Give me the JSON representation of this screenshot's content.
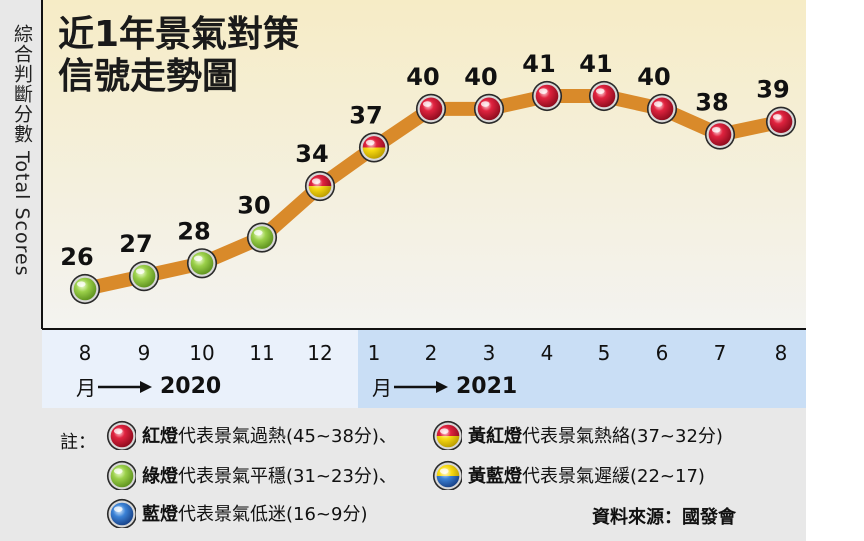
{
  "chart_data": {
    "type": "line",
    "title_line1": "近1年景氣對策",
    "title_line2": "信號走勢圖",
    "ylabel": "綜合判斷分數 Total Scores",
    "x_tick_labels": [
      "8",
      "9",
      "10",
      "11",
      "12",
      "1",
      "2",
      "3",
      "4",
      "5",
      "6",
      "7",
      "8"
    ],
    "series": [
      {
        "values": [
          26,
          27,
          28,
          30,
          34,
          37,
          40,
          40,
          41,
          41,
          40,
          38,
          39
        ],
        "signals": [
          "green",
          "green",
          "green",
          "green",
          "yellow-red",
          "yellow-red",
          "red",
          "red",
          "red",
          "red",
          "red",
          "red",
          "red"
        ]
      }
    ],
    "year_2020_prefix": "月",
    "year_2020": "2020",
    "year_2021_prefix": "月",
    "year_2021": "2021",
    "ylim": [
      23,
      44
    ],
    "grid": false,
    "line_color": "#d98a2a"
  },
  "legend": {
    "note_label": "註：",
    "items": [
      {
        "signal": "red",
        "name": "紅燈",
        "desc": "代表景氣過熱(45~38分)、"
      },
      {
        "signal": "yellow-red",
        "name": "黃紅燈",
        "desc": "代表景氣熱絡(37~32分)"
      },
      {
        "signal": "green",
        "name": "綠燈",
        "desc": "代表景氣平穩(31~23分)、"
      },
      {
        "signal": "yellow-blue",
        "name": "黃藍燈",
        "desc": "代表景氣遲緩(22~17)"
      },
      {
        "signal": "blue",
        "name": "藍燈",
        "desc": "代表景氣低迷(16~9分)"
      }
    ],
    "source": "資料來源：國發會"
  },
  "colors": {
    "plot_bg_top": "#f6ecc6",
    "plot_bg_bottom": "#f3f3f0",
    "band_2020": "#eaf1fb",
    "band_2021": "#c9def5",
    "red": "#c8102e",
    "yellow": "#f5d800",
    "green": "#8cc63f",
    "blue": "#2f6fc4"
  }
}
